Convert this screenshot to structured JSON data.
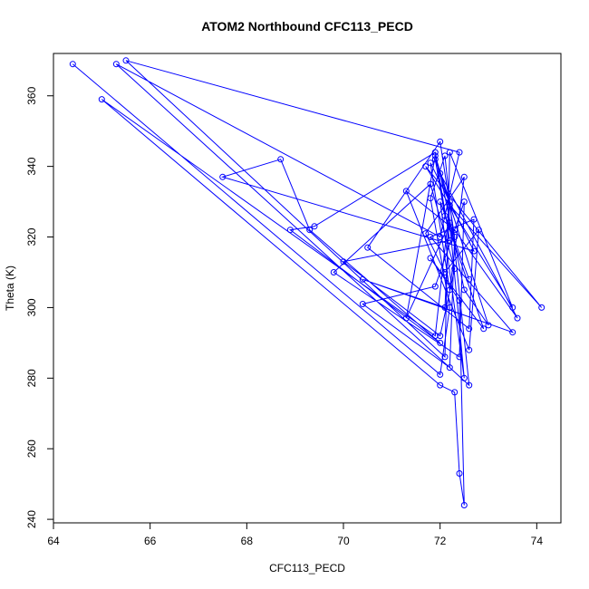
{
  "chart_data": {
    "type": "line",
    "title": "ATOM2 Northbound CFC113_PECD",
    "xlabel": "CFC113_PECD",
    "ylabel": "Theta (K)",
    "xlim": [
      64,
      74.5
    ],
    "ylim": [
      239,
      372
    ],
    "x_ticks": [
      64,
      66,
      68,
      70,
      72,
      74
    ],
    "y_ticks": [
      240,
      260,
      280,
      300,
      320,
      340,
      360
    ],
    "grid": false,
    "color": "#0000ff",
    "markers": "open-circle",
    "series": [
      {
        "name": "",
        "points": [
          [
            64.4,
            369
          ],
          [
            72.0,
            281
          ],
          [
            72.2,
            300
          ],
          [
            71.8,
            331
          ],
          [
            72.1,
            343
          ],
          [
            72.6,
            278
          ],
          [
            65.3,
            369
          ],
          [
            72.0,
            320
          ],
          [
            72.4,
            344
          ],
          [
            65.5,
            370
          ],
          [
            72.1,
            286
          ],
          [
            72.2,
            344
          ],
          [
            73.5,
            300
          ],
          [
            71.7,
            340
          ],
          [
            74.1,
            300
          ],
          [
            72.2,
            329
          ],
          [
            71.9,
            292
          ],
          [
            65.0,
            359
          ],
          [
            72.0,
            278
          ],
          [
            72.3,
            276
          ],
          [
            72.4,
            253
          ],
          [
            72.5,
            244
          ],
          [
            72.4,
            302
          ],
          [
            71.8,
            314
          ],
          [
            72.9,
            294
          ],
          [
            72.1,
            326
          ],
          [
            71.9,
            342
          ],
          [
            73.0,
            295
          ],
          [
            72.5,
            305
          ],
          [
            72.0,
            338
          ],
          [
            73.6,
            297
          ],
          [
            72.3,
            322
          ],
          [
            71.3,
            333
          ],
          [
            72.6,
            288
          ],
          [
            72.8,
            322
          ],
          [
            72.1,
            310
          ],
          [
            71.7,
            321
          ],
          [
            72.5,
            337
          ],
          [
            72.2,
            305
          ],
          [
            71.8,
            341
          ],
          [
            72.7,
            316
          ],
          [
            67.5,
            337
          ],
          [
            68.7,
            342
          ],
          [
            69.3,
            322
          ],
          [
            72.0,
            290
          ],
          [
            68.9,
            322
          ],
          [
            69.4,
            323
          ],
          [
            71.9,
            344
          ],
          [
            72.2,
            319
          ],
          [
            70.0,
            313
          ],
          [
            72.0,
            292
          ],
          [
            72.3,
            311
          ],
          [
            71.8,
            335
          ],
          [
            69.8,
            310
          ],
          [
            72.4,
            286
          ],
          [
            72.5,
            330
          ],
          [
            71.9,
            306
          ],
          [
            70.4,
            301
          ],
          [
            72.2,
            283
          ],
          [
            72.3,
            320
          ],
          [
            72.0,
            347
          ],
          [
            70.5,
            317
          ],
          [
            72.6,
            294
          ],
          [
            72.7,
            325
          ],
          [
            71.8,
            320
          ],
          [
            73.5,
            293
          ],
          [
            70.4,
            308
          ],
          [
            72.1,
            300
          ],
          [
            72.2,
            330
          ],
          [
            71.9,
            343
          ],
          [
            71.3,
            297
          ],
          [
            72.2,
            324
          ],
          [
            72.5,
            280
          ],
          [
            72.0,
            330
          ],
          [
            72.6,
            308
          ]
        ]
      }
    ]
  }
}
